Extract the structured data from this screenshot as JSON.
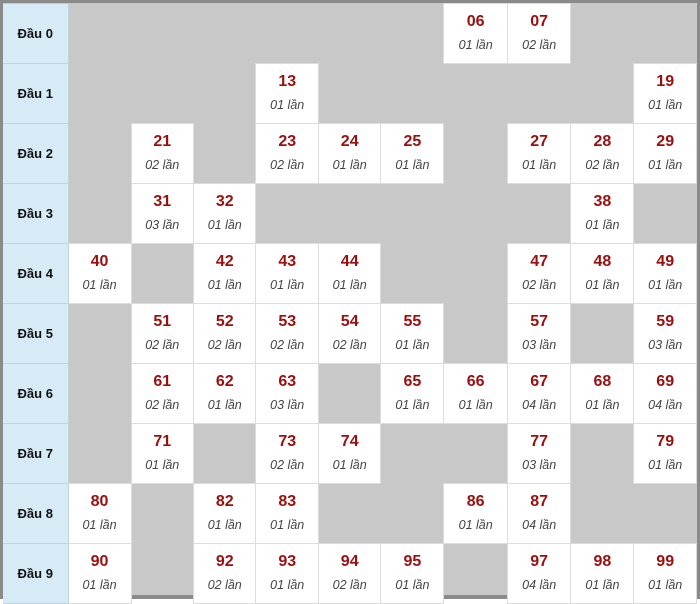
{
  "colors": {
    "header_bg": "#d7ebf7",
    "number": "#9b0f0f",
    "empty_cell": "#c8c8c8",
    "filled_cell": "#ffffff"
  },
  "rows": [
    {
      "label": "Đầu 0",
      "cells": [
        null,
        null,
        null,
        null,
        null,
        null,
        {
          "num": "06",
          "count": "01 lần"
        },
        {
          "num": "07",
          "count": "02 lần"
        },
        null,
        null
      ]
    },
    {
      "label": "Đầu 1",
      "cells": [
        null,
        null,
        null,
        {
          "num": "13",
          "count": "01 lần"
        },
        null,
        null,
        null,
        null,
        null,
        {
          "num": "19",
          "count": "01 lần"
        }
      ]
    },
    {
      "label": "Đầu 2",
      "cells": [
        null,
        {
          "num": "21",
          "count": "02 lần"
        },
        null,
        {
          "num": "23",
          "count": "02 lần"
        },
        {
          "num": "24",
          "count": "01 lần"
        },
        {
          "num": "25",
          "count": "01 lần"
        },
        null,
        {
          "num": "27",
          "count": "01 lần"
        },
        {
          "num": "28",
          "count": "02 lần"
        },
        {
          "num": "29",
          "count": "01 lần"
        }
      ]
    },
    {
      "label": "Đầu 3",
      "cells": [
        null,
        {
          "num": "31",
          "count": "03 lần"
        },
        {
          "num": "32",
          "count": "01 lần"
        },
        null,
        null,
        null,
        null,
        null,
        {
          "num": "38",
          "count": "01 lần"
        },
        null
      ]
    },
    {
      "label": "Đầu 4",
      "cells": [
        {
          "num": "40",
          "count": "01 lần"
        },
        null,
        {
          "num": "42",
          "count": "01 lần"
        },
        {
          "num": "43",
          "count": "01 lần"
        },
        {
          "num": "44",
          "count": "01 lần"
        },
        null,
        null,
        {
          "num": "47",
          "count": "02 lần"
        },
        {
          "num": "48",
          "count": "01 lần"
        },
        {
          "num": "49",
          "count": "01 lần"
        }
      ]
    },
    {
      "label": "Đầu 5",
      "cells": [
        null,
        {
          "num": "51",
          "count": "02 lần"
        },
        {
          "num": "52",
          "count": "02 lần"
        },
        {
          "num": "53",
          "count": "02 lần"
        },
        {
          "num": "54",
          "count": "02 lần"
        },
        {
          "num": "55",
          "count": "01 lần"
        },
        null,
        {
          "num": "57",
          "count": "03 lần"
        },
        null,
        {
          "num": "59",
          "count": "03 lần"
        }
      ]
    },
    {
      "label": "Đầu 6",
      "cells": [
        null,
        {
          "num": "61",
          "count": "02 lần"
        },
        {
          "num": "62",
          "count": "01 lần"
        },
        {
          "num": "63",
          "count": "03 lần"
        },
        null,
        {
          "num": "65",
          "count": "01 lần"
        },
        {
          "num": "66",
          "count": "01 lần"
        },
        {
          "num": "67",
          "count": "04 lần"
        },
        {
          "num": "68",
          "count": "01 lần"
        },
        {
          "num": "69",
          "count": "04 lần"
        }
      ]
    },
    {
      "label": "Đầu 7",
      "cells": [
        null,
        {
          "num": "71",
          "count": "01 lần"
        },
        null,
        {
          "num": "73",
          "count": "02 lần"
        },
        {
          "num": "74",
          "count": "01 lần"
        },
        null,
        null,
        {
          "num": "77",
          "count": "03 lần"
        },
        null,
        {
          "num": "79",
          "count": "01 lần"
        }
      ]
    },
    {
      "label": "Đầu 8",
      "cells": [
        {
          "num": "80",
          "count": "01 lần"
        },
        null,
        {
          "num": "82",
          "count": "01 lần"
        },
        {
          "num": "83",
          "count": "01 lần"
        },
        null,
        null,
        {
          "num": "86",
          "count": "01 lần"
        },
        {
          "num": "87",
          "count": "04 lần"
        },
        null,
        null
      ]
    },
    {
      "label": "Đầu 9",
      "cells": [
        {
          "num": "90",
          "count": "01 lần"
        },
        null,
        {
          "num": "92",
          "count": "02 lần"
        },
        {
          "num": "93",
          "count": "01 lần"
        },
        {
          "num": "94",
          "count": "02 lần"
        },
        {
          "num": "95",
          "count": "01 lần"
        },
        null,
        {
          "num": "97",
          "count": "04 lần"
        },
        {
          "num": "98",
          "count": "01 lần"
        },
        {
          "num": "99",
          "count": "01 lần"
        }
      ]
    }
  ]
}
